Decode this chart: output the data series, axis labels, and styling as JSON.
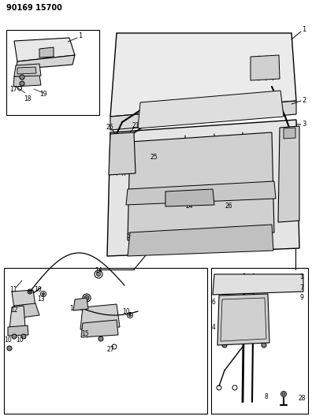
{
  "title": "90169 15700",
  "bg_color": "#ffffff",
  "line_color": "#000000",
  "fig_width": 3.96,
  "fig_height": 5.33,
  "dpi": 100
}
